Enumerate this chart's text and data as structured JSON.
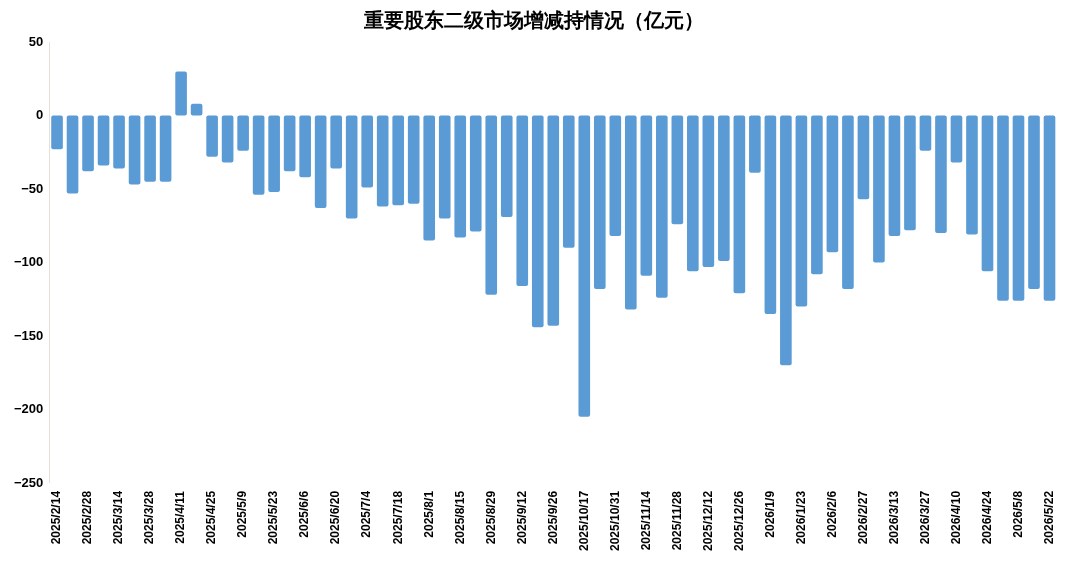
{
  "chart_data": {
    "type": "bar",
    "title": "重要股东二级市场增减持情况（亿元）",
    "categories": [
      "2025/2/14",
      null,
      "2025/2/28",
      null,
      "2025/3/14",
      null,
      "2025/3/28",
      null,
      "2025/4/11",
      null,
      "2025/4/25",
      null,
      "2025/5/9",
      null,
      "2025/5/23",
      null,
      "2025/6/6",
      null,
      "2025/6/20",
      null,
      "2025/7/4",
      null,
      "2025/7/18",
      null,
      "2025/8/1",
      null,
      "2025/8/15",
      null,
      "2025/8/29",
      null,
      "2025/9/12",
      null,
      "2025/9/26",
      null,
      "2025/10/17",
      null,
      "2025/10/31",
      null,
      "2025/11/14",
      null,
      "2025/11/28",
      null,
      "2025/12/12",
      null,
      "2025/12/26",
      null,
      "2026/1/9",
      null,
      "2026/1/23",
      null,
      "2026/2/6",
      null,
      "2026/2/27",
      null,
      "2026/3/13",
      null,
      "2026/3/27",
      null,
      "2026/4/10",
      null,
      "2026/4/24",
      null,
      "2026/5/8",
      null,
      "2026/5/22"
    ],
    "values": [
      -23,
      -53,
      -38,
      -34,
      -36,
      -47,
      -45,
      -45,
      30,
      8,
      -28,
      -32,
      -24,
      -54,
      -52,
      -38,
      -42,
      -63,
      -36,
      -70,
      -49,
      -62,
      -61,
      -60,
      -85,
      -70,
      -83,
      -79,
      -122,
      -69,
      -116,
      -144,
      -143,
      -90,
      -205,
      -118,
      -82,
      -132,
      -109,
      -124,
      -74,
      -106,
      -103,
      -99,
      -121,
      -39,
      -135,
      -170,
      -130,
      -108,
      -93,
      -118,
      -57,
      -100,
      -82,
      -78,
      -24,
      -80,
      -32,
      -81,
      -106,
      -126,
      -126,
      -118,
      -126
    ],
    "color": "#5b9bd5",
    "ylim": [
      -250,
      50
    ],
    "yticks": [
      -250,
      -200,
      -150,
      -100,
      -50,
      0,
      50
    ],
    "grid": false,
    "legend": false
  }
}
